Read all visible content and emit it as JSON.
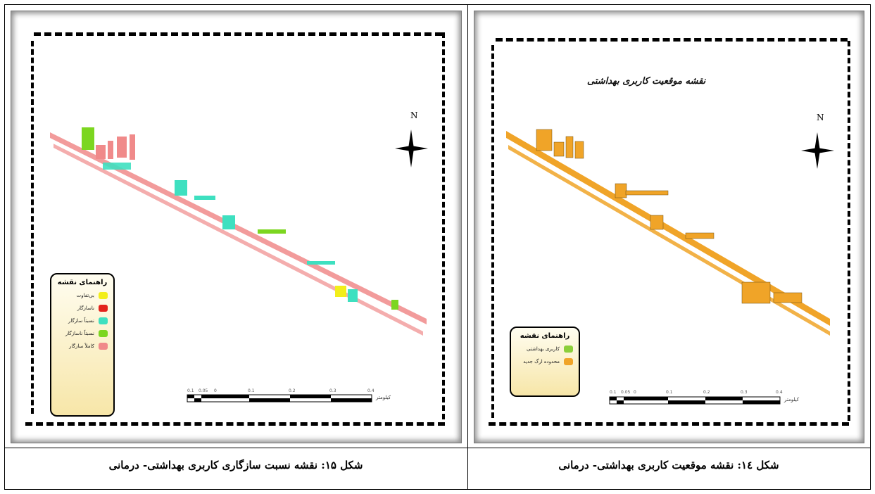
{
  "left_panel": {
    "caption": "شکل ۱۵: نقشه نسبت سازگاری کاربری بهداشتی- درمانی",
    "north_label": "N",
    "legend": {
      "title": "راهنمای نقشه",
      "items": [
        {
          "label": "بی‌تفاوت",
          "color": "#f2ee1a"
        },
        {
          "label": "ناسازگار",
          "color": "#e3231c"
        },
        {
          "label": "نسبتاً سازگار",
          "color": "#3ee0c0"
        },
        {
          "label": "نسبتاً ناسازگار",
          "color": "#7cd620"
        },
        {
          "label": "کاملاً سازگار",
          "color": "#f08a8a"
        }
      ]
    },
    "scale_label": "کیلومتر",
    "scale_ticks": [
      "0.1",
      "0.05",
      "0",
      "0.1",
      "0.2",
      "0.3",
      "0.4"
    ]
  },
  "right_panel": {
    "caption": "شکل ١٤: نقشه موقعیت کاربری بهداشتی- درمانی",
    "map_title": "نقشه موقعیت کاربری بهداشتی",
    "north_label": "N",
    "legend": {
      "title": "راهنمای نقشه",
      "items": [
        {
          "label": "کاربری بهداشتی",
          "color": "#8ccf3a"
        },
        {
          "label": "محدوده ارگ جدید",
          "color": "#f0a428"
        }
      ]
    },
    "scale_label": "کیلومتر",
    "scale_ticks": [
      "0.1",
      "0.05",
      "0",
      "0.1",
      "0.2",
      "0.3",
      "0.4"
    ]
  },
  "colors": {
    "parcel_orange": "#f0a428",
    "road_pink": "#f08a8a"
  }
}
